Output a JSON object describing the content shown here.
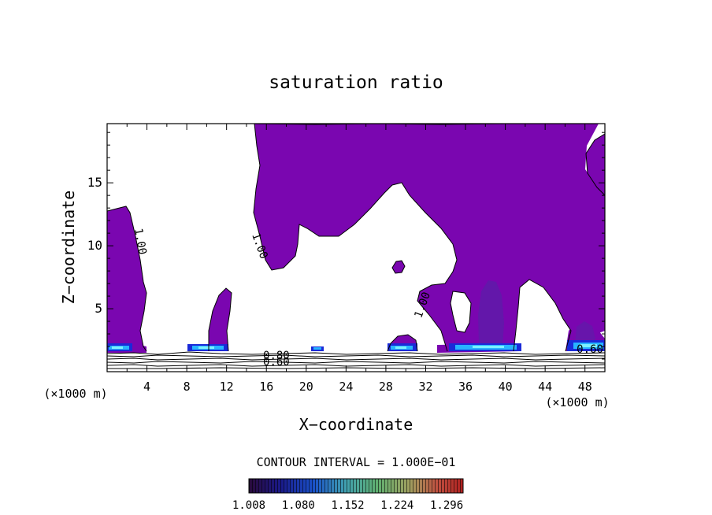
{
  "chart_data": {
    "type": "contour",
    "title": "saturation ratio",
    "xlabel": "X−coordinate",
    "ylabel": "Z−coordinate",
    "x_unit": "(×1000 m)",
    "y_unit": "(×1000 m)",
    "xlim": [
      0,
      50
    ],
    "ylim": [
      0,
      19.7
    ],
    "x_ticks": [
      4,
      8,
      12,
      16,
      20,
      24,
      28,
      32,
      36,
      40,
      44,
      48
    ],
    "y_ticks": [
      5,
      10,
      15
    ],
    "contour_labels": [
      {
        "text": "1.00",
        "x": 3.0,
        "z": 10.3,
        "rot": 80
      },
      {
        "text": "1.00",
        "x": 15.0,
        "z": 9.9,
        "rot": 70
      },
      {
        "text": "1.00",
        "x": 32.0,
        "z": 5.2,
        "rot": -70
      },
      {
        "text": "0.80",
        "x": 17.0,
        "z": 1.0,
        "rot": 0
      },
      {
        "text": "0.60",
        "x": 17.0,
        "z": 0.5,
        "rot": 0
      },
      {
        "text": "0.60",
        "x": 48.5,
        "z": 1.5,
        "rot": 0
      }
    ],
    "contour_interval": "CONTOUR INTERVAL = 1.000E−01",
    "colorbar": {
      "labels": [
        "1.008",
        "1.080",
        "1.152",
        "1.224",
        "1.296"
      ],
      "min": 1.008,
      "max": 1.32
    },
    "colors": {
      "fill": "#7a06b0",
      "fill_deep": "#5a1fa8",
      "high_1": "#1a2ad8",
      "high_2": "#28b4ff",
      "high_3": "#7cf0ff"
    }
  }
}
